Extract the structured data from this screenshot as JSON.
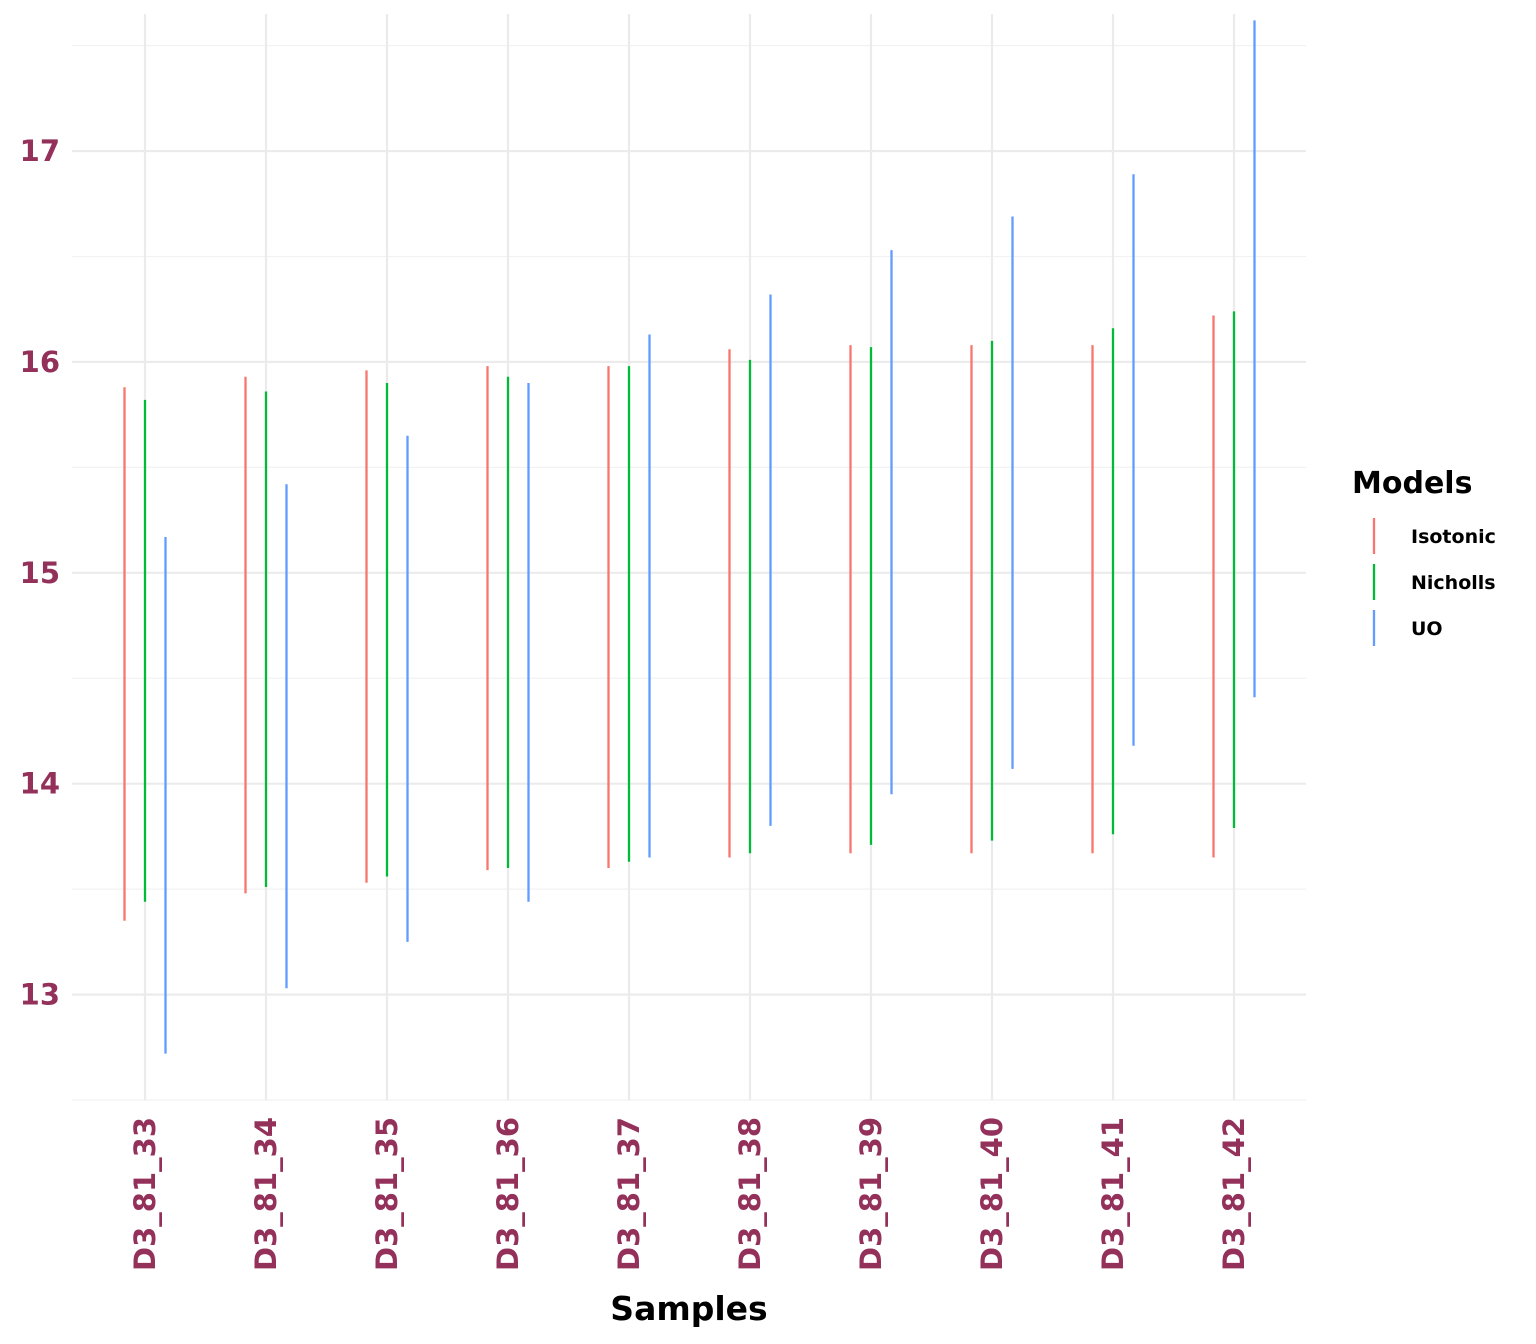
{
  "chart_data": {
    "type": "linerange",
    "xlabel": "Samples",
    "ylabel": "",
    "ylim": [
      12.5,
      17.65
    ],
    "y_ticks": [
      13,
      14,
      15,
      16,
      17
    ],
    "grid": true,
    "legend": {
      "title": "Models",
      "placement": "right"
    },
    "categories": [
      "D3_81_33",
      "D3_81_34",
      "D3_81_35",
      "D3_81_36",
      "D3_81_37",
      "D3_81_38",
      "D3_81_39",
      "D3_81_40",
      "D3_81_41",
      "D3_81_42"
    ],
    "series": [
      {
        "name": "Isotonic",
        "color": "#f8766d",
        "low": [
          13.35,
          13.48,
          13.53,
          13.59,
          13.6,
          13.65,
          13.67,
          13.67,
          13.67,
          13.65
        ],
        "high": [
          15.88,
          15.93,
          15.96,
          15.98,
          15.98,
          16.06,
          16.08,
          16.08,
          16.08,
          16.22
        ]
      },
      {
        "name": "Nicholls",
        "color": "#00ba38",
        "low": [
          13.44,
          13.51,
          13.56,
          13.6,
          13.63,
          13.67,
          13.71,
          13.73,
          13.76,
          13.79
        ],
        "high": [
          15.82,
          15.86,
          15.9,
          15.93,
          15.98,
          16.01,
          16.07,
          16.1,
          16.16,
          16.24
        ]
      },
      {
        "name": "UO",
        "color": "#619cff",
        "low": [
          12.72,
          13.03,
          13.25,
          13.44,
          13.65,
          13.8,
          13.95,
          14.07,
          14.18,
          14.41
        ],
        "high": [
          15.17,
          15.42,
          15.65,
          15.9,
          16.13,
          16.32,
          16.53,
          16.69,
          16.89,
          17.62
        ]
      }
    ]
  }
}
